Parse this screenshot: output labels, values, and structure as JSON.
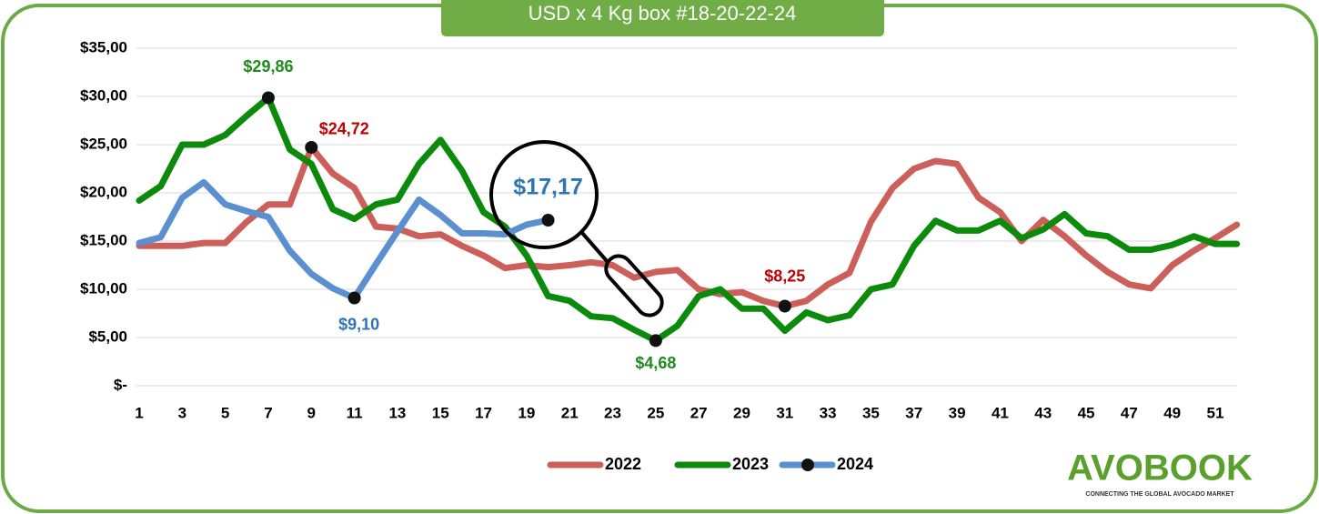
{
  "chart_data": {
    "type": "line",
    "title": "USD x 4 Kg box #18-20-22-24",
    "logo": "AVOBOOK",
    "logo_tagline": "CONNECTING THE GLOBAL AVOCADO MARKET",
    "categories": [
      1,
      null,
      3,
      null,
      5,
      null,
      7,
      null,
      9,
      null,
      11,
      null,
      13,
      null,
      15,
      null,
      17,
      null,
      19,
      null,
      21,
      null,
      23,
      null,
      25,
      null,
      27,
      null,
      29,
      null,
      31,
      null,
      33,
      null,
      35,
      null,
      37,
      null,
      39,
      null,
      41,
      null,
      43,
      null,
      45,
      null,
      47,
      null,
      49,
      null,
      51,
      null
    ],
    "ylim": [
      0,
      35
    ],
    "yticks": [
      {
        "value": 0,
        "label": "$-"
      },
      {
        "value": 5,
        "label": "$5,00"
      },
      {
        "value": 10,
        "label": "$10,00"
      },
      {
        "value": 15,
        "label": "$15,00"
      },
      {
        "value": 20,
        "label": "$20,00"
      },
      {
        "value": 25,
        "label": "$25,00"
      },
      {
        "value": 30,
        "label": "$30,00"
      },
      {
        "value": 35,
        "label": "$35,00"
      }
    ],
    "grid": true,
    "legend": "bottom",
    "series": [
      {
        "name": "2022",
        "color": "#cd5f5a",
        "label_color": "#c00000",
        "values": [
          14.5,
          14.5,
          14.5,
          14.8,
          14.8,
          17,
          18.8,
          18.8,
          24.72,
          22,
          20.5,
          16.5,
          16.3,
          15.5,
          15.7,
          14.5,
          13.5,
          12.2,
          12.5,
          12.3,
          12.5,
          12.8,
          12.5,
          11.2,
          11.8,
          12,
          10,
          9.5,
          9.7,
          8.8,
          8.25,
          8.8,
          10.5,
          11.7,
          17,
          20.5,
          22.5,
          23.3,
          23,
          19.5,
          18,
          15,
          17.2,
          15.5,
          13.5,
          11.8,
          10.5,
          10.1,
          12.5,
          14,
          15.3,
          16.7
        ],
        "value_labels": [
          null,
          null,
          null,
          null,
          null,
          null,
          null,
          null,
          "$24,72",
          null,
          null,
          null,
          null,
          null,
          null,
          null,
          null,
          null,
          null,
          null,
          null,
          null,
          null,
          null,
          null,
          null,
          null,
          null,
          null,
          null,
          "$8,25",
          null,
          null,
          null,
          null,
          null,
          null,
          null,
          null,
          null,
          null,
          null,
          null,
          null,
          null,
          null,
          null,
          null,
          null,
          null,
          null,
          null
        ]
      },
      {
        "name": "2023",
        "color": "#0b8a0b",
        "label_color": "#1e8c1e",
        "values": [
          19.2,
          20.7,
          25,
          25,
          26,
          28,
          29.86,
          24.5,
          23,
          18.3,
          17.3,
          18.8,
          19.3,
          23,
          25.5,
          22.3,
          18,
          16.5,
          13.5,
          9.3,
          8.8,
          7.2,
          7,
          5.8,
          4.68,
          6.2,
          9.3,
          10,
          8,
          8,
          5.7,
          7.6,
          6.8,
          7.3,
          10,
          10.5,
          14.5,
          17.1,
          16.1,
          16.1,
          17.1,
          15.3,
          16.2,
          17.8,
          15.8,
          15.5,
          14.1,
          14.1,
          14.6,
          15.5,
          14.7,
          14.7
        ],
        "value_labels": [
          null,
          null,
          null,
          null,
          null,
          null,
          "$29,86",
          null,
          null,
          null,
          null,
          null,
          null,
          null,
          null,
          null,
          null,
          null,
          null,
          null,
          null,
          null,
          null,
          null,
          "$4,68",
          null,
          null,
          null,
          null,
          null,
          null,
          null,
          null,
          null,
          null,
          null,
          null,
          null,
          null,
          null,
          null,
          null,
          null,
          null,
          null,
          null,
          null,
          null,
          null,
          null,
          null,
          null
        ]
      },
      {
        "name": "2024",
        "color": "#5b8fd0",
        "label_color": "#2e75b6",
        "values": [
          14.8,
          15.4,
          19.5,
          21.1,
          18.8,
          18.1,
          17.5,
          14,
          11.6,
          10.1,
          9.1,
          12.6,
          16,
          19.3,
          17.7,
          15.8,
          15.8,
          15.7,
          16.7,
          17.17,
          null,
          null,
          null,
          null,
          null,
          null,
          null,
          null,
          null,
          null,
          null,
          null,
          null,
          null,
          null,
          null,
          null,
          null,
          null,
          null,
          null,
          null,
          null,
          null,
          null,
          null,
          null,
          null,
          null,
          null,
          null,
          null
        ],
        "value_labels": [
          null,
          null,
          null,
          null,
          null,
          null,
          null,
          null,
          null,
          null,
          "$9,10",
          null,
          null,
          null,
          null,
          null,
          null,
          null,
          null,
          "$17,17",
          null,
          null,
          null,
          null,
          null,
          null,
          null,
          null,
          null,
          null,
          null,
          null,
          null,
          null,
          null,
          null,
          null,
          null,
          null,
          null,
          null,
          null,
          null,
          null,
          null,
          null,
          null,
          null,
          null,
          null,
          null,
          null
        ]
      }
    ]
  }
}
